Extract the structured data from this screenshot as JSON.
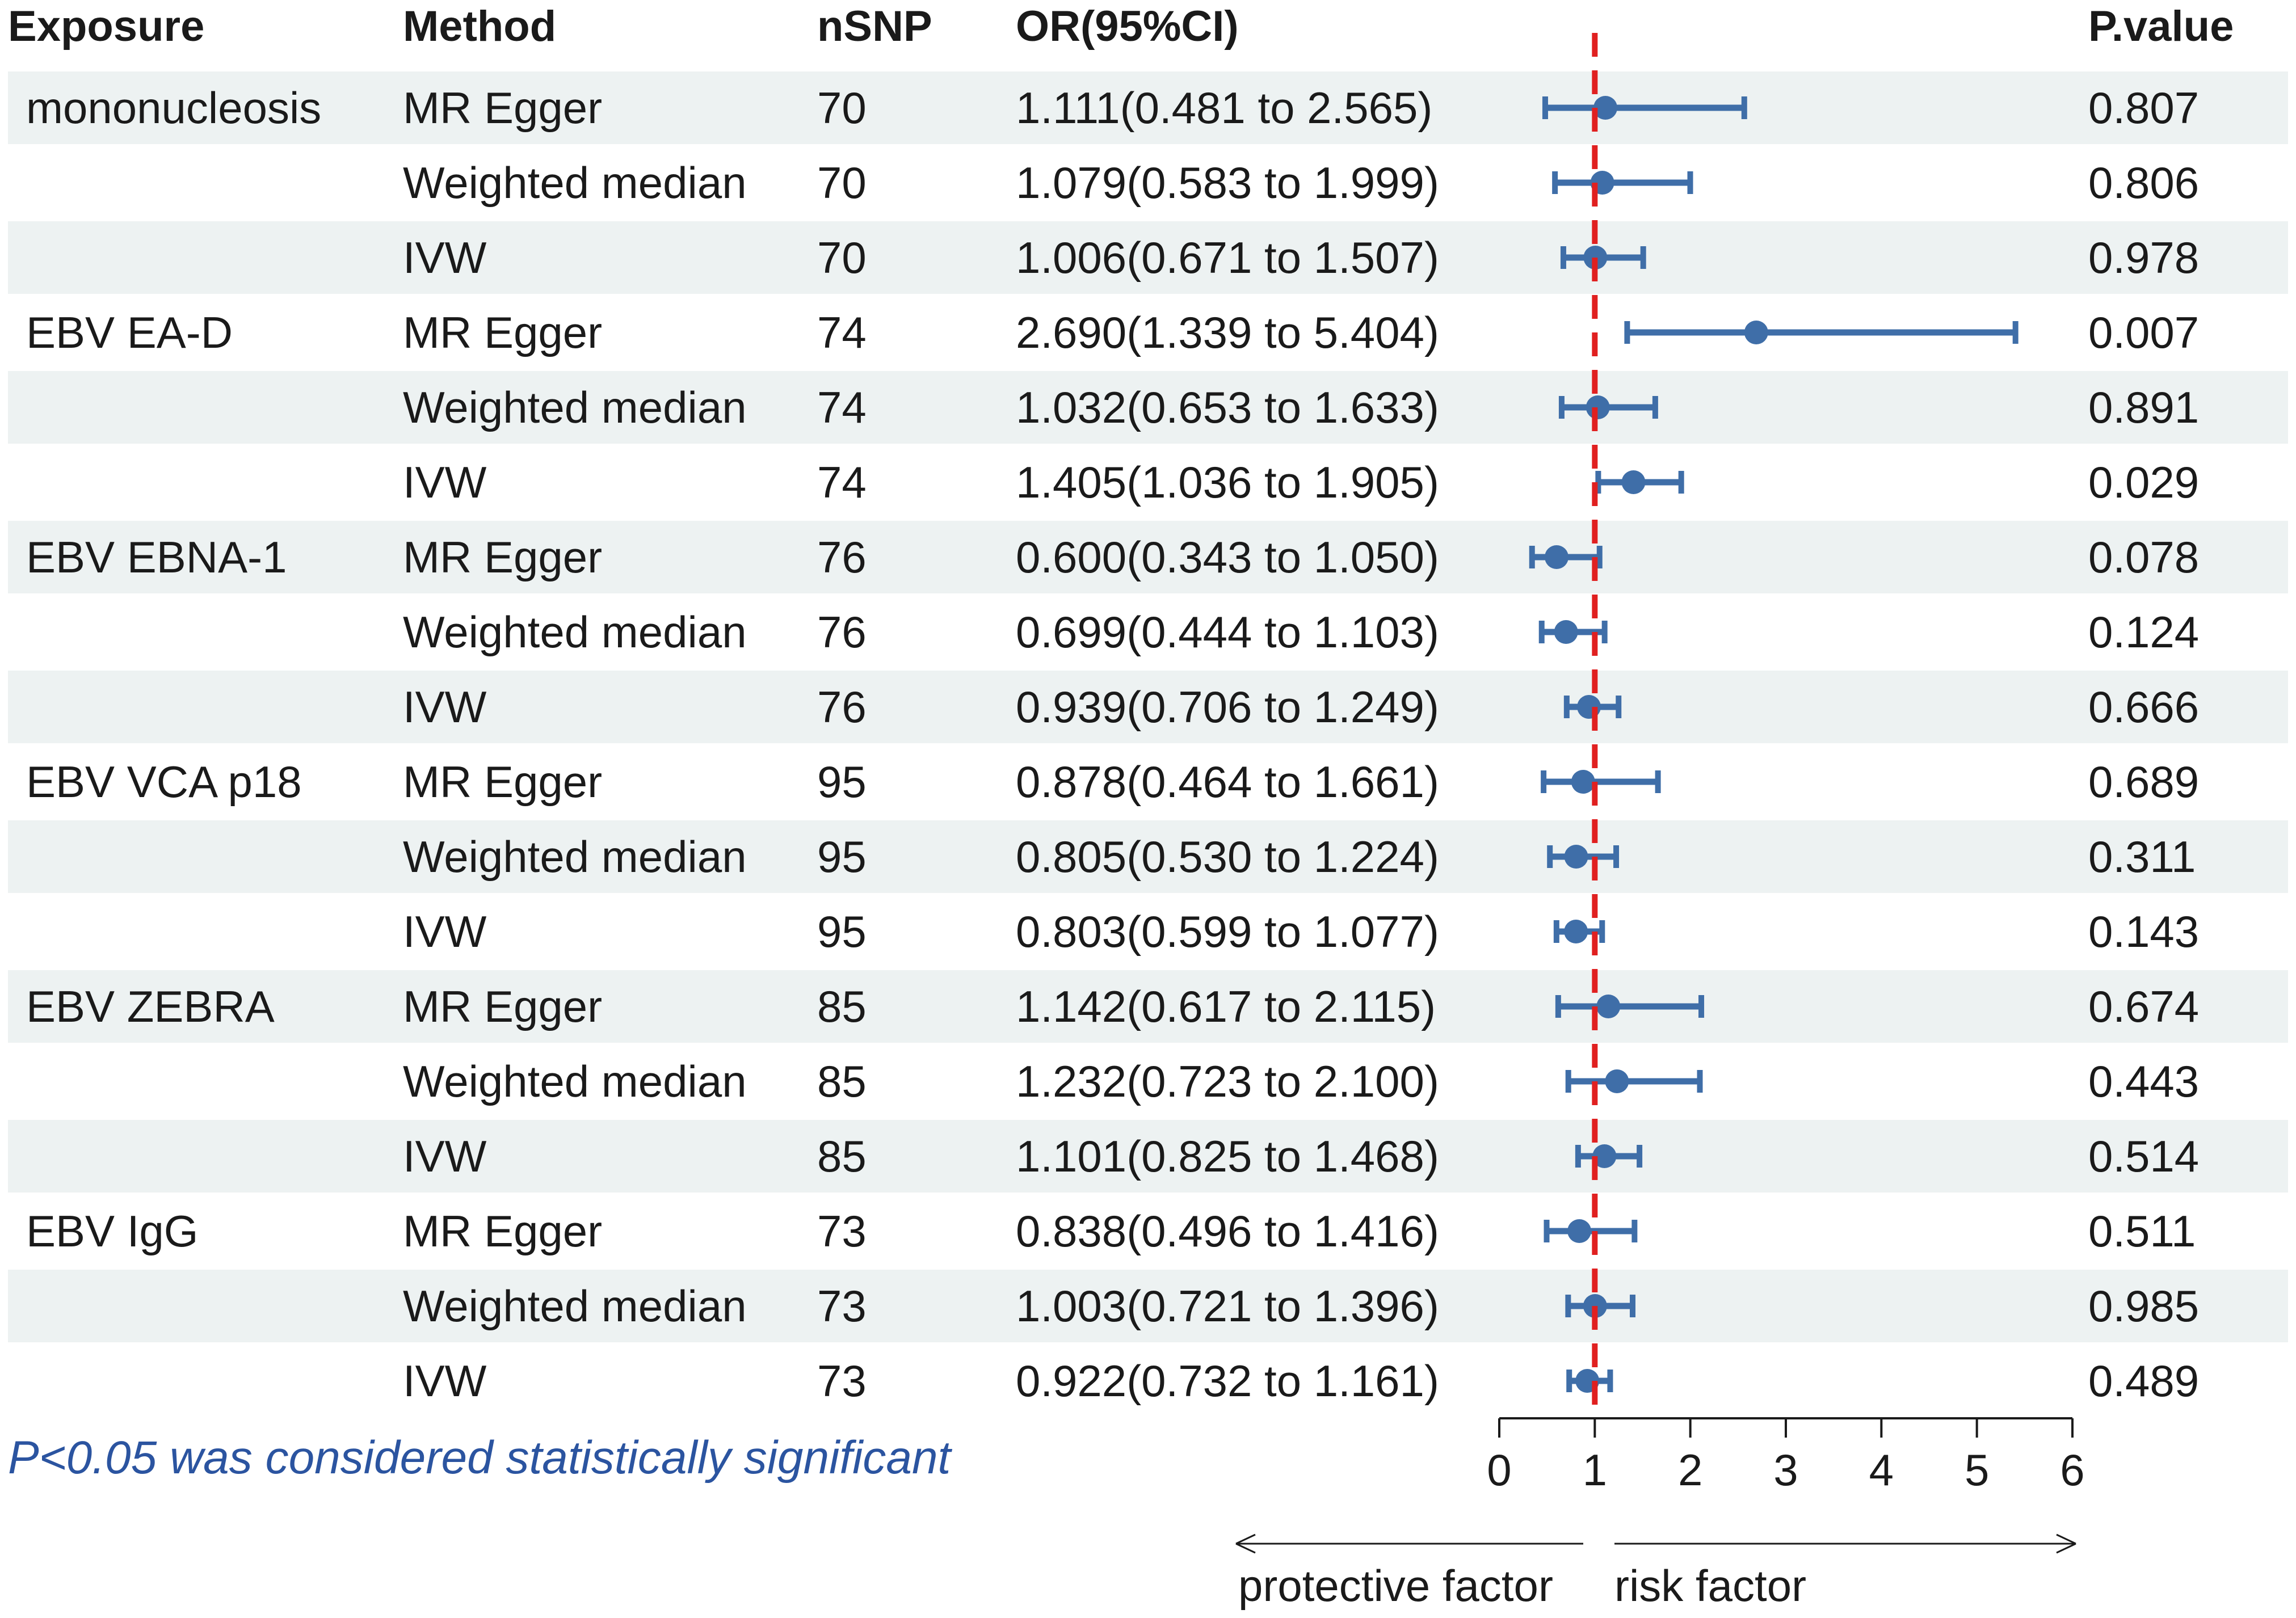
{
  "chart_data": {
    "type": "forest",
    "columns": [
      "Exposure",
      "Method",
      "nSNP",
      "OR(95%CI)",
      "P.value"
    ],
    "rows": [
      {
        "exposure": "mononucleosis",
        "method": "MR Egger",
        "nsnp": "70",
        "or_ci": "1.111(0.481 to 2.565)",
        "or": 1.111,
        "lo": 0.481,
        "hi": 2.565,
        "p": "0.807"
      },
      {
        "exposure": "",
        "method": "Weighted median",
        "nsnp": "70",
        "or_ci": "1.079(0.583 to 1.999)",
        "or": 1.079,
        "lo": 0.583,
        "hi": 1.999,
        "p": "0.806"
      },
      {
        "exposure": "",
        "method": "IVW",
        "nsnp": "70",
        "or_ci": "1.006(0.671 to 1.507)",
        "or": 1.006,
        "lo": 0.671,
        "hi": 1.507,
        "p": "0.978"
      },
      {
        "exposure": "EBV EA-D",
        "method": "MR Egger",
        "nsnp": "74",
        "or_ci": "2.690(1.339 to 5.404)",
        "or": 2.69,
        "lo": 1.339,
        "hi": 5.404,
        "p": "0.007"
      },
      {
        "exposure": "",
        "method": "Weighted median",
        "nsnp": "74",
        "or_ci": "1.032(0.653 to 1.633)",
        "or": 1.032,
        "lo": 0.653,
        "hi": 1.633,
        "p": "0.891"
      },
      {
        "exposure": "",
        "method": "IVW",
        "nsnp": "74",
        "or_ci": "1.405(1.036 to 1.905)",
        "or": 1.405,
        "lo": 1.036,
        "hi": 1.905,
        "p": "0.029"
      },
      {
        "exposure": "EBV EBNA-1",
        "method": "MR Egger",
        "nsnp": "76",
        "or_ci": "0.600(0.343 to 1.050)",
        "or": 0.6,
        "lo": 0.343,
        "hi": 1.05,
        "p": "0.078"
      },
      {
        "exposure": "",
        "method": "Weighted median",
        "nsnp": "76",
        "or_ci": "0.699(0.444 to 1.103)",
        "or": 0.699,
        "lo": 0.444,
        "hi": 1.103,
        "p": "0.124"
      },
      {
        "exposure": "",
        "method": "IVW",
        "nsnp": "76",
        "or_ci": "0.939(0.706 to 1.249)",
        "or": 0.939,
        "lo": 0.706,
        "hi": 1.249,
        "p": "0.666"
      },
      {
        "exposure": "EBV VCA p18",
        "method": "MR Egger",
        "nsnp": "95",
        "or_ci": "0.878(0.464 to 1.661)",
        "or": 0.878,
        "lo": 0.464,
        "hi": 1.661,
        "p": "0.689"
      },
      {
        "exposure": "",
        "method": "Weighted median",
        "nsnp": "95",
        "or_ci": "0.805(0.530 to 1.224)",
        "or": 0.805,
        "lo": 0.53,
        "hi": 1.224,
        "p": "0.311"
      },
      {
        "exposure": "",
        "method": "IVW",
        "nsnp": "95",
        "or_ci": "0.803(0.599 to 1.077)",
        "or": 0.803,
        "lo": 0.599,
        "hi": 1.077,
        "p": "0.143"
      },
      {
        "exposure": "EBV ZEBRA",
        "method": "MR Egger",
        "nsnp": "85",
        "or_ci": "1.142(0.617 to 2.115)",
        "or": 1.142,
        "lo": 0.617,
        "hi": 2.115,
        "p": "0.674"
      },
      {
        "exposure": "",
        "method": "Weighted median",
        "nsnp": "85",
        "or_ci": "1.232(0.723 to 2.100)",
        "or": 1.232,
        "lo": 0.723,
        "hi": 2.1,
        "p": "0.443"
      },
      {
        "exposure": "",
        "method": "IVW",
        "nsnp": "85",
        "or_ci": "1.101(0.825 to 1.468)",
        "or": 1.101,
        "lo": 0.825,
        "hi": 1.468,
        "p": "0.514"
      },
      {
        "exposure": "EBV IgG",
        "method": "MR Egger",
        "nsnp": "73",
        "or_ci": "0.838(0.496 to 1.416)",
        "or": 0.838,
        "lo": 0.496,
        "hi": 1.416,
        "p": "0.511"
      },
      {
        "exposure": "",
        "method": "Weighted median",
        "nsnp": "73",
        "or_ci": "1.003(0.721 to 1.396)",
        "or": 1.003,
        "lo": 0.721,
        "hi": 1.396,
        "p": "0.985"
      },
      {
        "exposure": "",
        "method": "IVW",
        "nsnp": "73",
        "or_ci": "0.922(0.732 to 1.161)",
        "or": 0.922,
        "lo": 0.732,
        "hi": 1.161,
        "p": "0.489"
      }
    ],
    "xlim": [
      0,
      6
    ],
    "xticks": [
      0,
      1,
      2,
      3,
      4,
      5,
      6
    ],
    "reference_line": 1,
    "left_direction_label": "protective factor",
    "right_direction_label": "risk factor",
    "footnote": "P<0.05 was considered statistically significant",
    "colors": {
      "point": "#3f6ea8",
      "reference": "#e02020",
      "stripe": "#edf2f2",
      "note": "#2b54a0"
    }
  }
}
